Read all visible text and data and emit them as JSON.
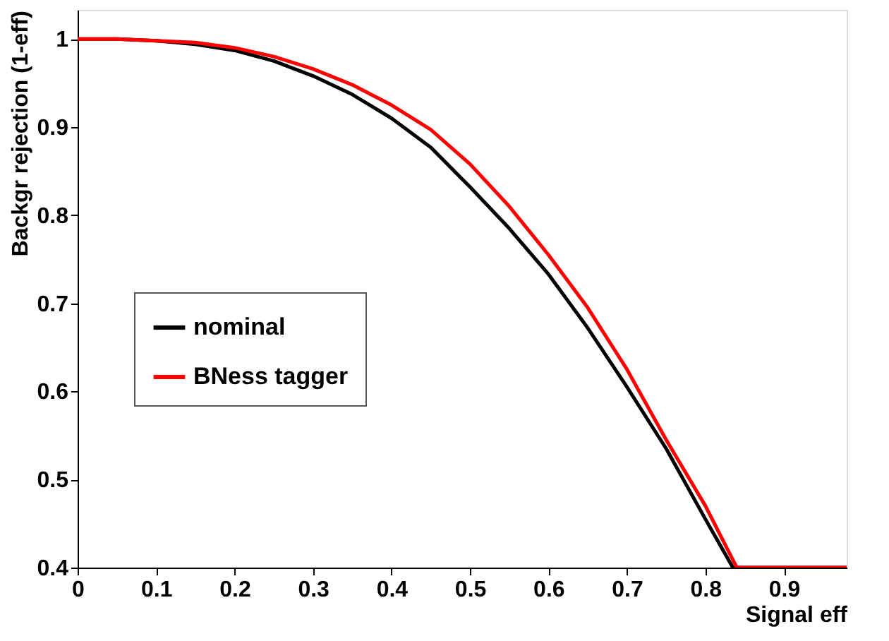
{
  "chart_data": {
    "type": "line",
    "xlabel": "Signal eff",
    "ylabel": "Backgr rejection (1-eff)",
    "xlim": [
      0,
      0.98
    ],
    "xticks": [
      0,
      0.1,
      0.2,
      0.3,
      0.4,
      0.5,
      0.6,
      0.7,
      0.8,
      0.9
    ],
    "ylim": [
      0.4,
      1.033
    ],
    "yticks": [
      0.4,
      0.5,
      0.6,
      0.7,
      0.8,
      0.9,
      1
    ],
    "grid": false,
    "legend": "left",
    "line_style": "solid",
    "marker": "none",
    "series": [
      {
        "name": "nominal",
        "color": "#000000",
        "x": [
          0,
          0.05,
          0.1,
          0.15,
          0.2,
          0.25,
          0.3,
          0.35,
          0.4,
          0.45,
          0.5,
          0.55,
          0.6,
          0.65,
          0.7,
          0.75,
          0.8,
          0.835,
          0.98
        ],
        "values": [
          1,
          1,
          0.998,
          0.994,
          0.987,
          0.975,
          0.958,
          0.937,
          0.91,
          0.877,
          0.832,
          0.785,
          0.733,
          0.672,
          0.605,
          0.535,
          0.455,
          0.4,
          0.4
        ]
      },
      {
        "name": "BNess tagger",
        "color": "#ff0000",
        "x": [
          0,
          0.05,
          0.1,
          0.15,
          0.2,
          0.25,
          0.3,
          0.35,
          0.4,
          0.45,
          0.5,
          0.55,
          0.6,
          0.65,
          0.7,
          0.75,
          0.8,
          0.84,
          0.98
        ],
        "values": [
          1,
          1,
          0.998,
          0.996,
          0.99,
          0.98,
          0.966,
          0.948,
          0.925,
          0.897,
          0.858,
          0.81,
          0.755,
          0.695,
          0.625,
          0.545,
          0.47,
          0.4,
          0.4
        ]
      }
    ]
  }
}
